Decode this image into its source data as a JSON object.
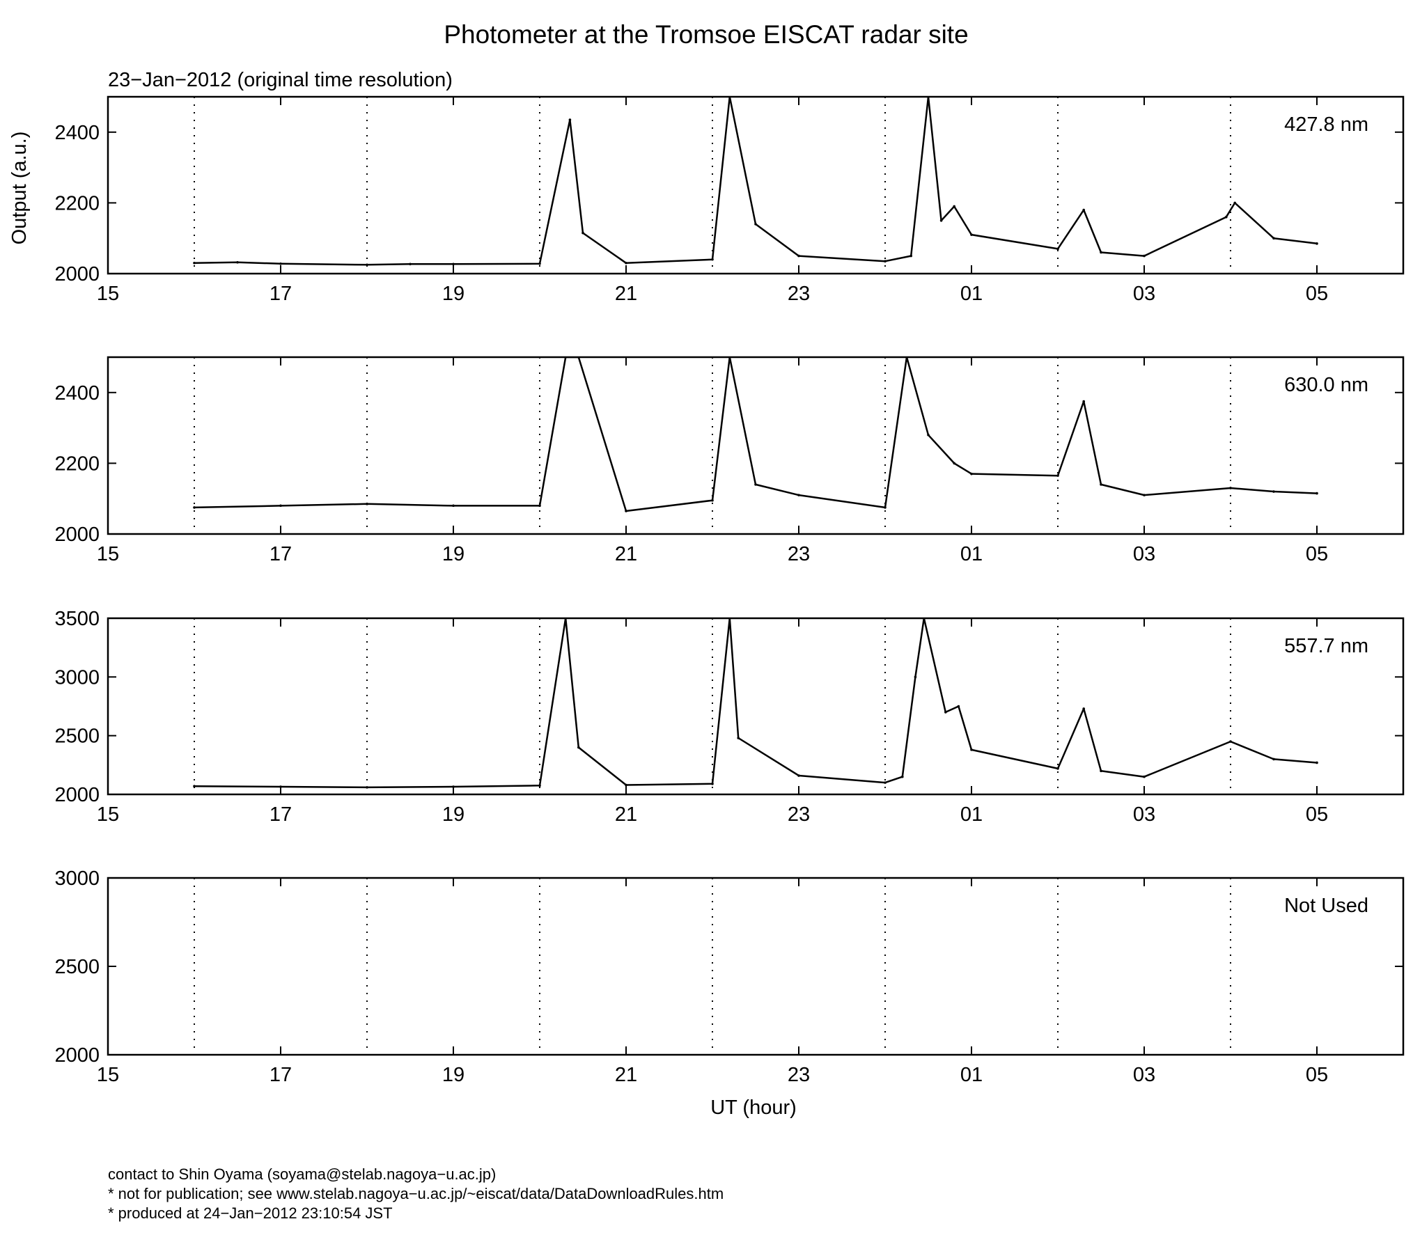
{
  "header": {
    "title": "Photometer at the Tromsoe EISCAT radar site",
    "subtitle": "23−Jan−2012 (original time resolution)"
  },
  "axes": {
    "ylabel": "Output (a.u.)",
    "xlabel": "UT (hour)"
  },
  "footer": {
    "line1": "contact to Shin Oyama (soyama@stelab.nagoya−u.ac.jp)",
    "line2": "* not for publication; see www.stelab.nagoya−u.ac.jp/~eiscat/data/DataDownloadRules.htm",
    "line3": "* produced at 24−Jan−2012 23:10:54 JST"
  },
  "chart_data": [
    {
      "type": "line",
      "panel_label": "427.8 nm",
      "x_unit": "hours from 15 UT",
      "x_ticks": [
        0,
        2,
        4,
        6,
        8,
        10,
        12,
        14
      ],
      "x_tick_labels": [
        "15",
        "17",
        "19",
        "21",
        "23",
        "01",
        "03",
        "05"
      ],
      "xlim": [
        0,
        15
      ],
      "ylim": [
        2000,
        2500
      ],
      "y_ticks": [
        2000,
        2200,
        2400
      ],
      "y_tick_labels": [
        "2000",
        "2200",
        "2400"
      ],
      "grid": "dotted vertical lines at 16, 18, 20, 22, 00, 02, 04 UT",
      "series": [
        {
          "x": [
            1,
            1.5,
            2,
            3,
            3.5,
            4,
            5,
            5.35,
            5.5,
            6,
            7,
            7.2,
            7.5,
            8,
            9,
            9.3,
            9.5,
            9.65,
            9.8,
            10,
            11,
            11.3,
            11.5,
            12,
            12.95,
            13.05,
            13.5,
            14
          ],
          "y": [
            2030,
            2032,
            2028,
            2025,
            2027,
            2027,
            2028,
            2435,
            2115,
            2030,
            2040,
            2500,
            2140,
            2050,
            2035,
            2050,
            2500,
            2150,
            2190,
            2110,
            2070,
            2180,
            2060,
            2050,
            2160,
            2200,
            2100,
            2085
          ]
        }
      ]
    },
    {
      "type": "line",
      "panel_label": "630.0 nm",
      "x_unit": "hours from 15 UT",
      "x_ticks": [
        0,
        2,
        4,
        6,
        8,
        10,
        12,
        14
      ],
      "x_tick_labels": [
        "15",
        "17",
        "19",
        "21",
        "23",
        "01",
        "03",
        "05"
      ],
      "xlim": [
        0,
        15
      ],
      "ylim": [
        2000,
        2500
      ],
      "y_ticks": [
        2000,
        2200,
        2400
      ],
      "y_tick_labels": [
        "2000",
        "2200",
        "2400"
      ],
      "grid": "dotted vertical lines at 16, 18, 20, 22, 00, 02, 04 UT",
      "series": [
        {
          "x": [
            1,
            2,
            3,
            4,
            5,
            5.3,
            5.45,
            6,
            7,
            7.2,
            7.5,
            8,
            9,
            9.25,
            9.5,
            9.8,
            10,
            11,
            11.3,
            11.5,
            12,
            13,
            13.5,
            14
          ],
          "y": [
            2075,
            2080,
            2085,
            2080,
            2080,
            2500,
            2500,
            2065,
            2095,
            2500,
            2140,
            2110,
            2075,
            2500,
            2280,
            2200,
            2170,
            2165,
            2375,
            2140,
            2110,
            2130,
            2120,
            2115
          ]
        }
      ]
    },
    {
      "type": "line",
      "panel_label": "557.7 nm",
      "x_unit": "hours from 15 UT",
      "x_ticks": [
        0,
        2,
        4,
        6,
        8,
        10,
        12,
        14
      ],
      "x_tick_labels": [
        "15",
        "17",
        "19",
        "21",
        "23",
        "01",
        "03",
        "05"
      ],
      "xlim": [
        0,
        15
      ],
      "ylim": [
        2000,
        3500
      ],
      "y_ticks": [
        2000,
        2500,
        3000,
        3500
      ],
      "y_tick_labels": [
        "2000",
        "2500",
        "3000",
        "3500"
      ],
      "grid": "dotted vertical lines at 16, 18, 20, 22, 00, 02, 04 UT",
      "series": [
        {
          "x": [
            1,
            2,
            3,
            4,
            5,
            5.3,
            5.45,
            6,
            7,
            7.2,
            7.3,
            8,
            9,
            9.2,
            9.35,
            9.45,
            9.7,
            9.85,
            10,
            11,
            11.3,
            11.5,
            12,
            13,
            13.5,
            14
          ],
          "y": [
            2070,
            2065,
            2060,
            2065,
            2075,
            3500,
            2400,
            2080,
            2090,
            3500,
            2480,
            2160,
            2100,
            2150,
            3000,
            3500,
            2700,
            2750,
            2380,
            2220,
            2730,
            2200,
            2150,
            2450,
            2300,
            2270
          ]
        }
      ]
    },
    {
      "type": "line",
      "panel_label": "Not Used",
      "x_unit": "hours from 15 UT",
      "x_ticks": [
        0,
        2,
        4,
        6,
        8,
        10,
        12,
        14
      ],
      "x_tick_labels": [
        "15",
        "17",
        "19",
        "21",
        "23",
        "01",
        "03",
        "05"
      ],
      "xlim": [
        0,
        15
      ],
      "ylim": [
        2000,
        3000
      ],
      "y_ticks": [
        2000,
        2500,
        3000
      ],
      "y_tick_labels": [
        "2000",
        "2500",
        "3000"
      ],
      "grid": "dotted vertical lines at 16, 18, 20, 22, 00, 02, 04 UT",
      "series": []
    }
  ]
}
